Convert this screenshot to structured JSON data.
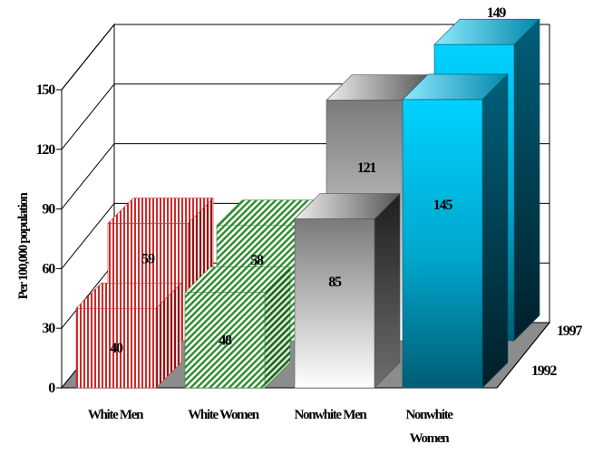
{
  "chart_data": {
    "type": "bar",
    "categories": [
      "White Men",
      "White Women",
      "Nonwhite Men",
      "Nonwhite Women"
    ],
    "series": [
      {
        "name": "1992",
        "values": [
          40,
          48,
          85,
          145
        ]
      },
      {
        "name": "1997",
        "values": [
          59,
          58,
          121,
          149
        ]
      }
    ],
    "title": "",
    "xlabel": "",
    "ylabel": "Per 100,000 population",
    "ylim": [
      0,
      150
    ],
    "yticks": [
      0,
      30,
      60,
      90,
      120,
      150
    ],
    "grid": true,
    "legend": "depth-axis labels",
    "colors": {
      "White Men": "#cc3333",
      "White Women": "#2e8b2e",
      "Nonwhite Men": "#808080",
      "Nonwhite Women": "#00ccff",
      "floor": "#8c8c8c"
    }
  }
}
